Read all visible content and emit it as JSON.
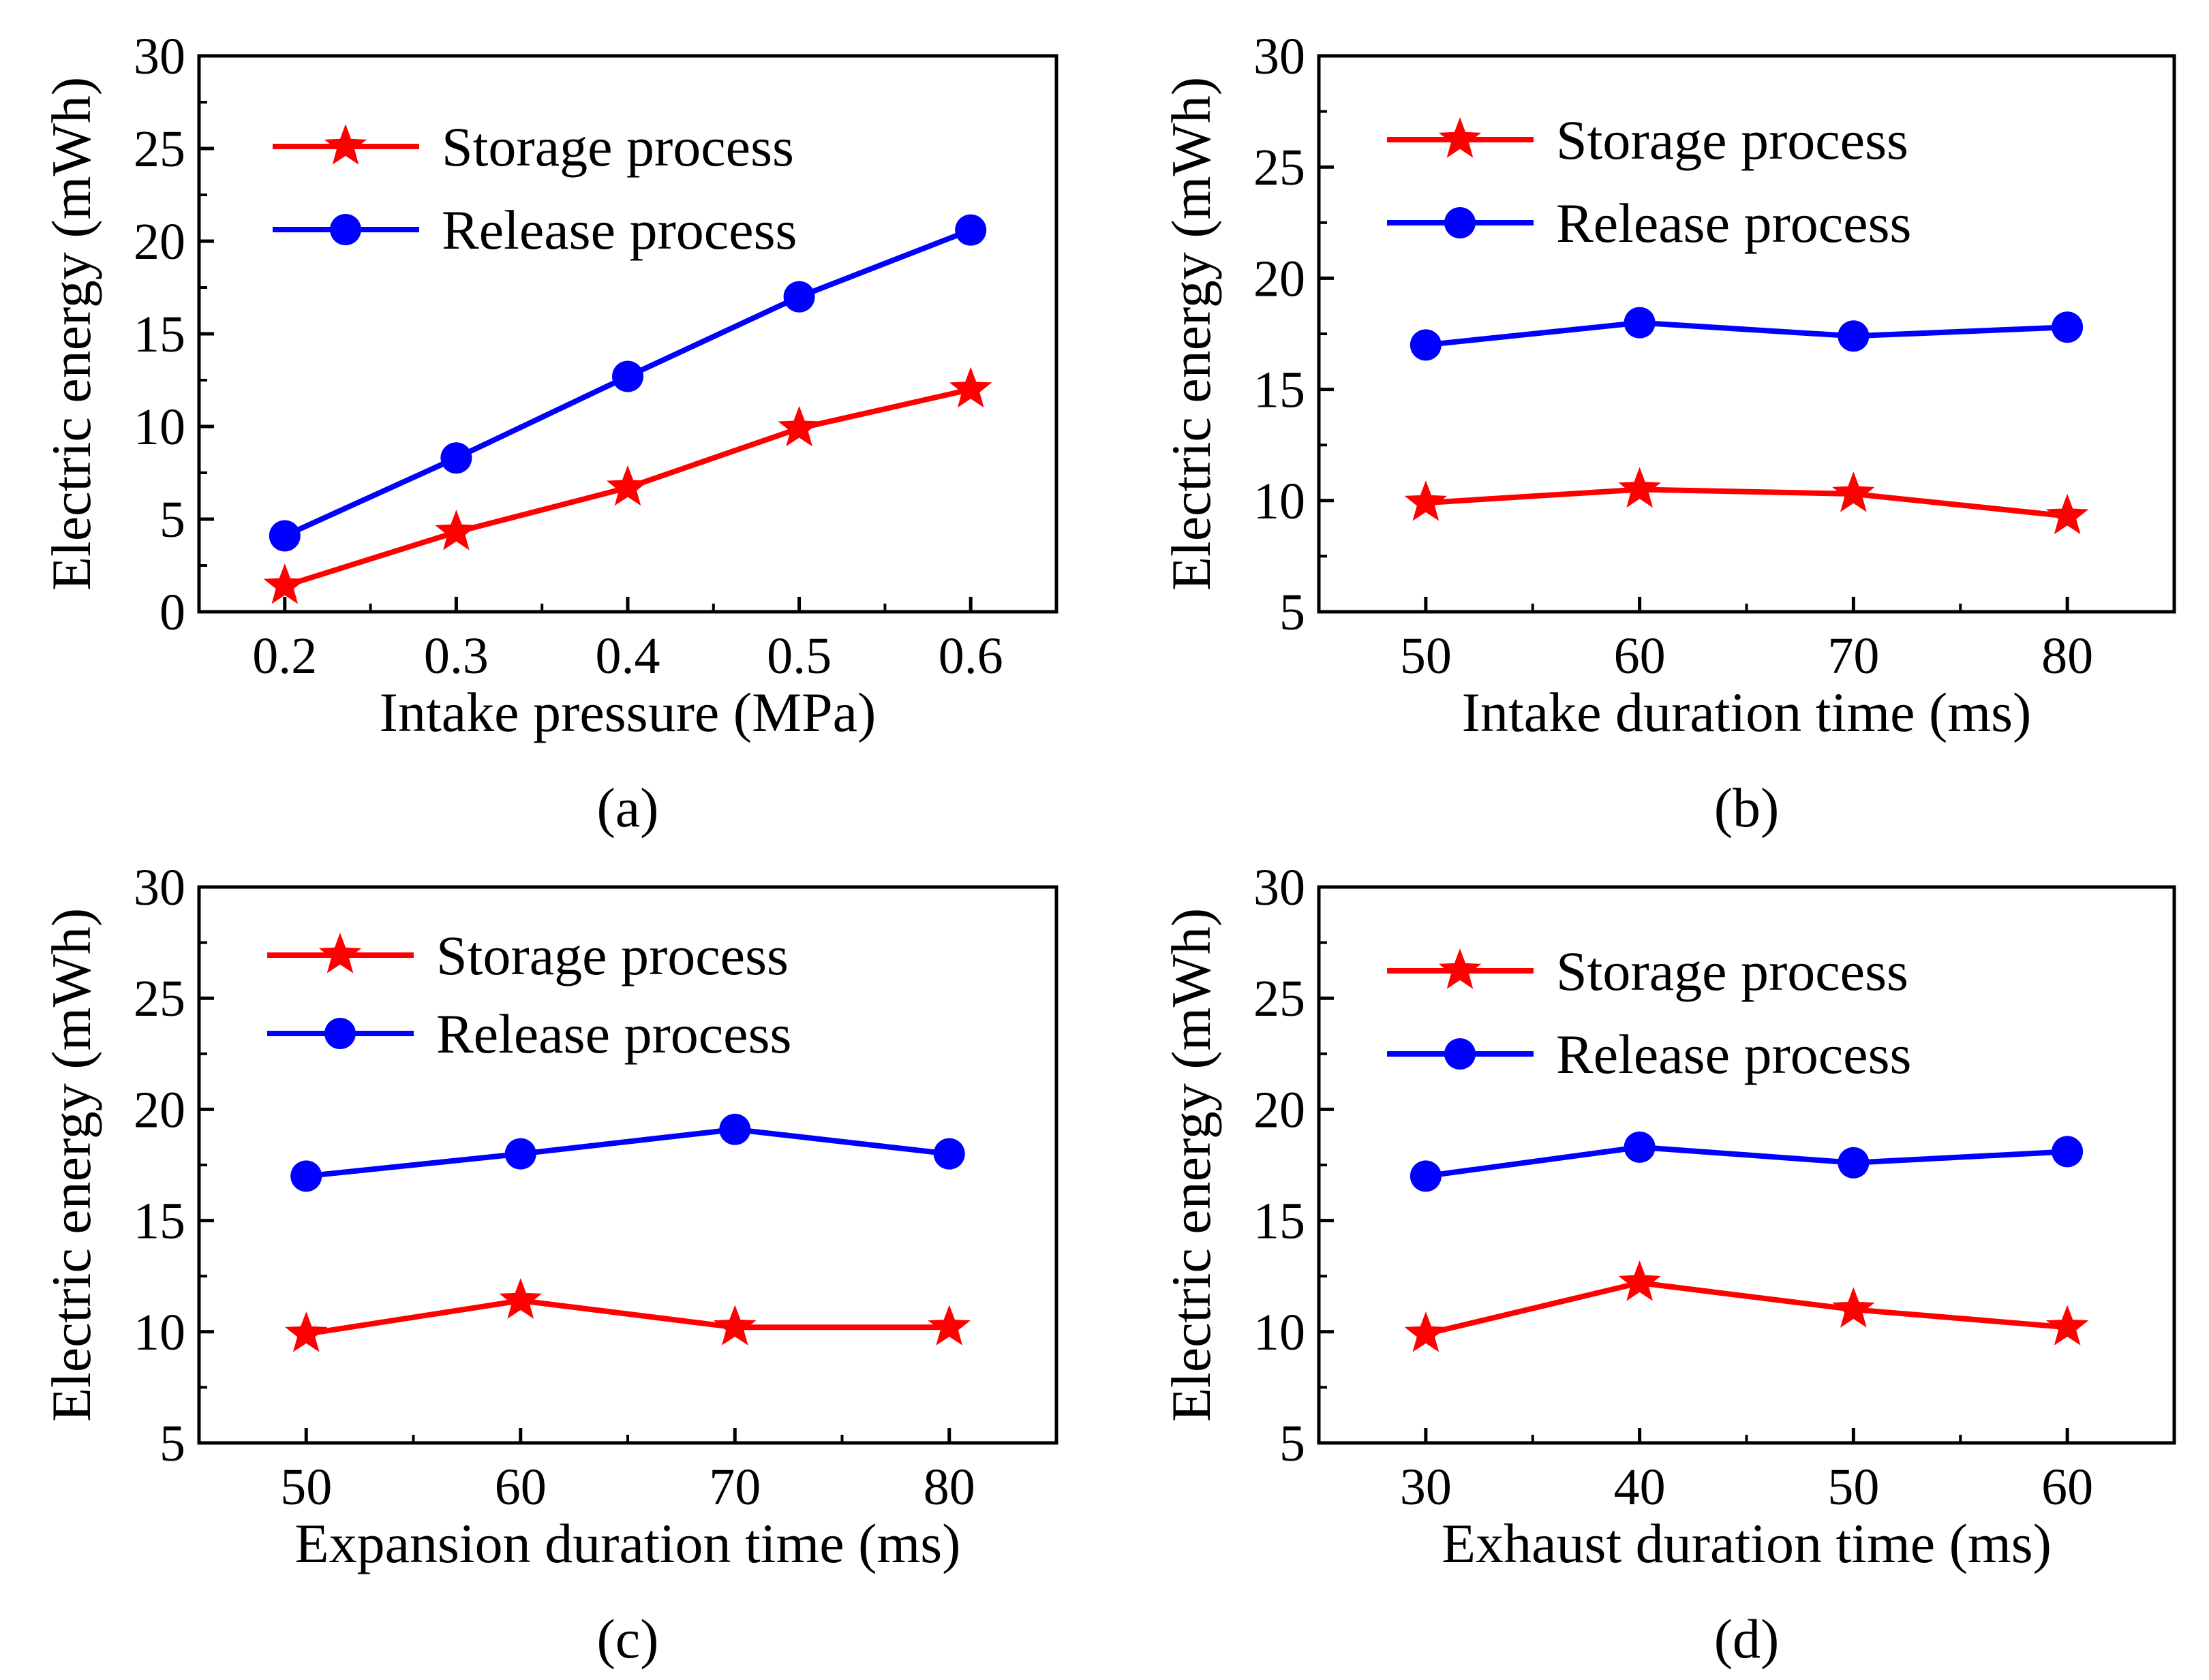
{
  "chart_data": [
    {
      "type": "line",
      "panel_label": "(a)",
      "xlabel": "Intake pressure (MPa)",
      "ylabel": "Electric energy (mWh)",
      "x": [
        0.2,
        0.3,
        0.4,
        0.5,
        0.6
      ],
      "xticks": [
        "0.2",
        "0.3",
        "0.4",
        "0.5",
        "0.6"
      ],
      "xlim": [
        0.15,
        0.65
      ],
      "ylim": [
        0,
        30
      ],
      "yticks": [
        0,
        5,
        10,
        15,
        20,
        25,
        30
      ],
      "legend_position": "top-left",
      "grid": false,
      "series": [
        {
          "name": "Storage process",
          "color": "#ff0000",
          "marker": "star",
          "values": [
            1.4,
            4.3,
            6.7,
            9.9,
            12.0
          ]
        },
        {
          "name": "Release process",
          "color": "#0000ff",
          "marker": "circle",
          "values": [
            4.1,
            8.3,
            12.7,
            17.0,
            20.6
          ]
        }
      ]
    },
    {
      "type": "line",
      "panel_label": "(b)",
      "xlabel": "Intake duration time (ms)",
      "ylabel": "Electric energy (mWh)",
      "x": [
        50,
        60,
        70,
        80
      ],
      "xticks": [
        "50",
        "60",
        "70",
        "80"
      ],
      "xlim": [
        45,
        85
      ],
      "ylim": [
        5,
        30
      ],
      "yticks": [
        5,
        10,
        15,
        20,
        25,
        30
      ],
      "legend_position": "top-left",
      "grid": false,
      "series": [
        {
          "name": "Storage process",
          "color": "#ff0000",
          "marker": "star",
          "values": [
            9.9,
            10.5,
            10.3,
            9.3
          ]
        },
        {
          "name": "Release process",
          "color": "#0000ff",
          "marker": "circle",
          "values": [
            17.0,
            18.0,
            17.4,
            17.8
          ]
        }
      ]
    },
    {
      "type": "line",
      "panel_label": "(c)",
      "xlabel": "Expansion duration time (ms)",
      "ylabel": "Electric energy (mWh)",
      "x": [
        50,
        60,
        70,
        80
      ],
      "xticks": [
        "50",
        "60",
        "70",
        "80"
      ],
      "xlim": [
        45,
        85
      ],
      "ylim": [
        5,
        30
      ],
      "yticks": [
        5,
        10,
        15,
        20,
        25,
        30
      ],
      "legend_position": "top-left",
      "grid": false,
      "series": [
        {
          "name": "Storage process",
          "color": "#ff0000",
          "marker": "star",
          "values": [
            9.9,
            11.4,
            10.2,
            10.2
          ]
        },
        {
          "name": "Release process",
          "color": "#0000ff",
          "marker": "circle",
          "values": [
            17.0,
            18.0,
            19.1,
            18.0
          ]
        }
      ]
    },
    {
      "type": "line",
      "panel_label": "(d)",
      "xlabel": "Exhaust duration time (ms)",
      "ylabel": "Electric energy (mWh)",
      "x": [
        30,
        40,
        50,
        60
      ],
      "xticks": [
        "30",
        "40",
        "50",
        "60"
      ],
      "xlim": [
        25,
        65
      ],
      "ylim": [
        5,
        30
      ],
      "yticks": [
        5,
        10,
        15,
        20,
        25,
        30
      ],
      "legend_position": "top-left",
      "grid": false,
      "series": [
        {
          "name": "Storage process",
          "color": "#ff0000",
          "marker": "star",
          "values": [
            9.9,
            12.2,
            11.0,
            10.2
          ]
        },
        {
          "name": "Release process",
          "color": "#0000ff",
          "marker": "circle",
          "values": [
            17.0,
            18.3,
            17.6,
            18.1
          ]
        }
      ]
    }
  ]
}
